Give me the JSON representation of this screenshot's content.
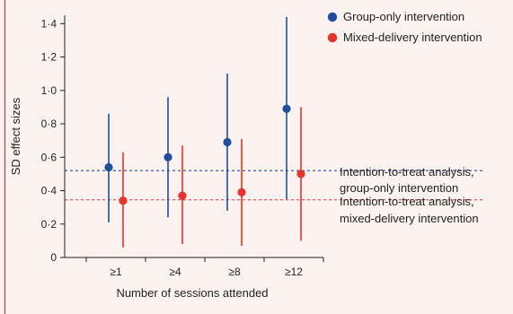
{
  "chart_data": {
    "type": "scatter",
    "xlabel": "Number of sessions attended",
    "ylabel": "SD effect sizes",
    "categories": [
      "≥1",
      "≥4",
      "≥8",
      "≥12"
    ],
    "ylim": [
      0,
      1.45
    ],
    "yticks": [
      {
        "value": 0,
        "label": "0"
      },
      {
        "value": 0.2,
        "label": "0·2"
      },
      {
        "value": 0.4,
        "label": "0·4"
      },
      {
        "value": 0.6,
        "label": "0·6"
      },
      {
        "value": 0.8,
        "label": "0·8"
      },
      {
        "value": 1.0,
        "label": "1·0"
      },
      {
        "value": 1.2,
        "label": "1·2"
      },
      {
        "value": 1.4,
        "label": "1·4"
      }
    ],
    "grid": false,
    "legend_position": "top-right",
    "series": [
      {
        "name": "Group-only intervention",
        "color": "#1f4e9c",
        "values": [
          0.54,
          0.6,
          0.69,
          0.89
        ],
        "lower": [
          0.21,
          0.24,
          0.28,
          0.35
        ],
        "upper": [
          0.86,
          0.96,
          1.1,
          1.44
        ]
      },
      {
        "name": "Mixed-delivery intervention",
        "color": "#e8322c",
        "values": [
          0.34,
          0.37,
          0.39,
          0.5
        ],
        "lower": [
          0.06,
          0.08,
          0.07,
          0.1
        ],
        "upper": [
          0.63,
          0.67,
          0.71,
          0.9
        ]
      }
    ],
    "reference_lines": [
      {
        "value": 0.52,
        "color": "#1f4e9c",
        "style": "dashed",
        "label_line1": "Intention-to-treat analysis,",
        "label_line2": "group-only intervention"
      },
      {
        "value": 0.345,
        "color": "#e8322c",
        "style": "dashed",
        "label_line1": "Intention-to-treat analysis,",
        "label_line2": "mixed-delivery intervention"
      }
    ]
  }
}
